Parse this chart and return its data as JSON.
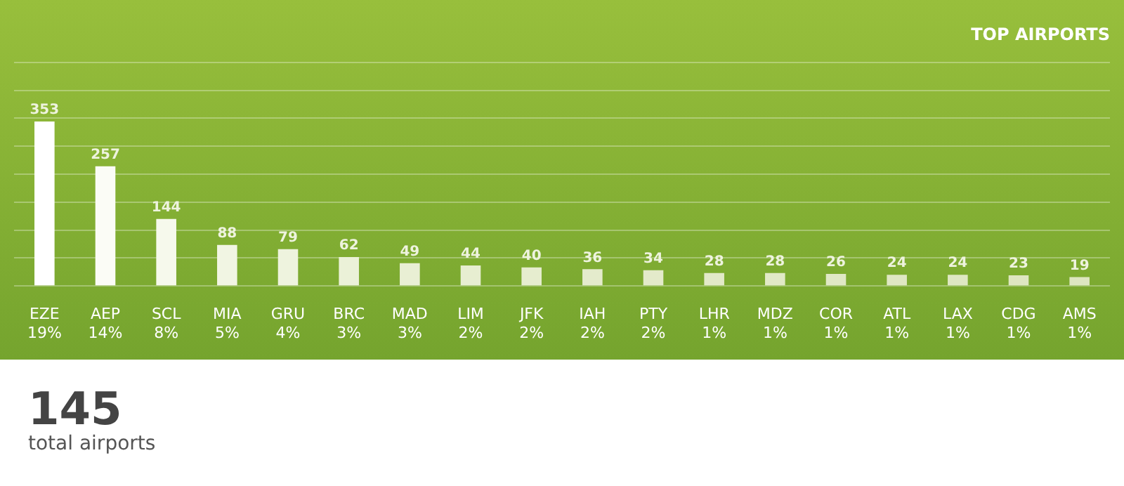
{
  "chart_data": {
    "type": "bar",
    "title": "TOP AIRPORTS",
    "categories": [
      "EZE\n19%",
      "AEP\n14%",
      "SCL\n8%",
      "MIA\n5%",
      "GRU\n4%",
      "BRC\n3%",
      "MAD\n3%",
      "LIM\n2%",
      "JFK\n2%",
      "IAH\n2%",
      "PTY\n2%",
      "LHR\n1%",
      "MDZ\n1%",
      "COR\n1%",
      "ATL\n1%",
      "LAX\n1%",
      "CDG\n1%",
      "AMS\n1%"
    ],
    "values": [
      353,
      257,
      144,
      88,
      79,
      62,
      49,
      44,
      40,
      36,
      34,
      28,
      28,
      26,
      24,
      24,
      23,
      19
    ],
    "colors": [
      "#ffffff",
      "#fbfcf6",
      "#f6f9ec",
      "#f1f5e3",
      "#eef3de",
      "#ebf1d8",
      "#e9efd4",
      "#e7eed1",
      "#e6edcf",
      "#e4ebcc",
      "#e3eaca",
      "#e2e9c8",
      "#e1e9c6",
      "#e0e8c5",
      "#dfe7c3",
      "#dee7c2",
      "#dee6c1",
      "#dde6c0"
    ],
    "ylim": [
      0,
      480
    ],
    "yticks": [
      {
        "value": 0,
        "label": null
      },
      {
        "value": 60,
        "label": null
      },
      {
        "value": 120,
        "label": null
      },
      {
        "value": 180,
        "label": null
      },
      {
        "value": 240,
        "label": null
      },
      {
        "value": 300,
        "label": null
      },
      {
        "value": 360,
        "label": null
      },
      {
        "value": 420,
        "label": null
      },
      {
        "value": 480,
        "label": null
      }
    ],
    "grid": "y",
    "legend": false,
    "tick_labels": "x",
    "data_labels": true,
    "annotations": [
      "145",
      "total airports"
    ]
  }
}
